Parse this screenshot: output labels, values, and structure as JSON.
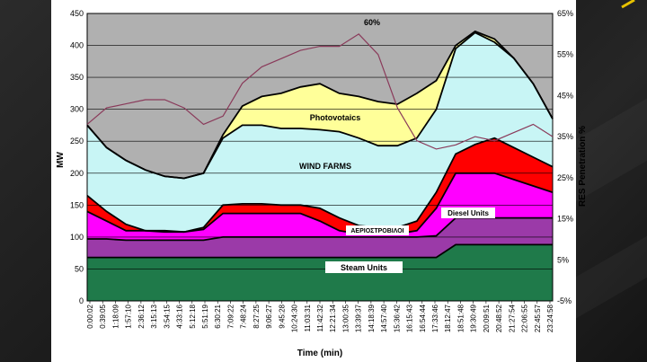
{
  "chart_data": {
    "type": "area",
    "title": "",
    "xlabel": "Time (min)",
    "ylabel": "MW",
    "y2label": "RES Penetration %",
    "ylim": [
      0,
      450
    ],
    "y2lim": [
      -5,
      65
    ],
    "yticks": [
      0,
      50,
      100,
      150,
      200,
      250,
      300,
      350,
      400,
      450
    ],
    "y2ticks": [
      "-5%",
      "5%",
      "15%",
      "25%",
      "35%",
      "45%",
      "55%",
      "65%"
    ],
    "x_ticks": [
      "0:00:02",
      "0:39:05",
      "1:18:09",
      "1:57:10",
      "2:36:12",
      "3:15:13",
      "3:54:15",
      "4:33:16",
      "5:12:18",
      "5:51:19",
      "6:30:21",
      "7:09:22",
      "7:48:24",
      "8:27:25",
      "9:06:27",
      "9:45:28",
      "10:24:30",
      "11:03:31",
      "11:42:32",
      "12:21:34",
      "13:00:35",
      "13:39:37",
      "14:18:39",
      "14:57:40",
      "15:36:42",
      "16:15:43",
      "16:54:44",
      "17:33:46",
      "18:12:47",
      "18:51:48",
      "19:30:49",
      "20:09:51",
      "20:48:52",
      "21:27:54",
      "22:06:55",
      "22:45:57",
      "23:24:58"
    ],
    "hours": [
      0,
      1,
      2,
      3,
      4,
      5,
      6,
      7,
      8,
      9,
      10,
      11,
      12,
      13,
      14,
      15,
      16,
      17,
      18,
      19,
      20,
      21,
      22,
      23,
      24
    ],
    "series": [
      {
        "name": "Steam Units",
        "color": "#1f7a4a",
        "values": [
          68,
          68,
          68,
          68,
          68,
          68,
          68,
          68,
          68,
          68,
          68,
          68,
          68,
          68,
          68,
          68,
          68,
          68,
          68,
          88,
          88,
          88,
          88,
          88,
          88
        ]
      },
      {
        "name": "",
        "color": "#9b3aa8",
        "values": [
          97,
          97,
          95,
          95,
          95,
          95,
          95,
          100,
          100,
          100,
          100,
          100,
          100,
          100,
          100,
          100,
          100,
          100,
          102,
          130,
          130,
          130,
          130,
          130,
          130
        ]
      },
      {
        "name": "",
        "color": "#ff00ff",
        "values": [
          140,
          125,
          110,
          110,
          110,
          108,
          112,
          137,
          137,
          137,
          137,
          137,
          125,
          110,
          105,
          105,
          105,
          110,
          145,
          200,
          200,
          200,
          190,
          180,
          170
        ]
      },
      {
        "name": "ΑΕΡΙΟΣΤΡΟΒΙΛΟΙ",
        "color": "#ff0000",
        "values": [
          165,
          140,
          120,
          110,
          108,
          108,
          115,
          150,
          152,
          152,
          150,
          150,
          145,
          130,
          118,
          115,
          115,
          125,
          170,
          230,
          245,
          255,
          240,
          225,
          210
        ]
      },
      {
        "name": "WIND FARMS",
        "color": "#c8f5f5",
        "values": [
          275,
          240,
          220,
          205,
          195,
          192,
          200,
          255,
          275,
          275,
          270,
          270,
          268,
          265,
          255,
          243,
          243,
          255,
          300,
          395,
          420,
          405,
          380,
          340,
          285
        ]
      },
      {
        "name": "Photovotaics",
        "color": "#ffff99",
        "values": [
          275,
          240,
          220,
          205,
          195,
          192,
          200,
          260,
          305,
          320,
          325,
          335,
          340,
          325,
          320,
          312,
          308,
          325,
          345,
          400,
          422,
          410,
          380,
          340,
          285
        ]
      }
    ],
    "res_penetration": {
      "color": "#8a3a5a",
      "values": [
        38,
        42,
        43,
        44,
        44,
        42,
        38,
        40,
        48,
        52,
        54,
        56,
        57,
        57,
        60,
        55,
        42,
        34,
        32,
        33,
        35,
        34,
        36,
        38,
        35
      ],
      "peak_label": "60%"
    },
    "labels": {
      "photovoltaics": "Photovotaics",
      "wind": "WIND FARMS",
      "diesel": "Diesel Units",
      "gas": "ΑΕΡΙΟΣΤΡΟΒΙΛΟΙ",
      "steam": "Steam Units"
    },
    "grid": true,
    "legend": "none"
  }
}
